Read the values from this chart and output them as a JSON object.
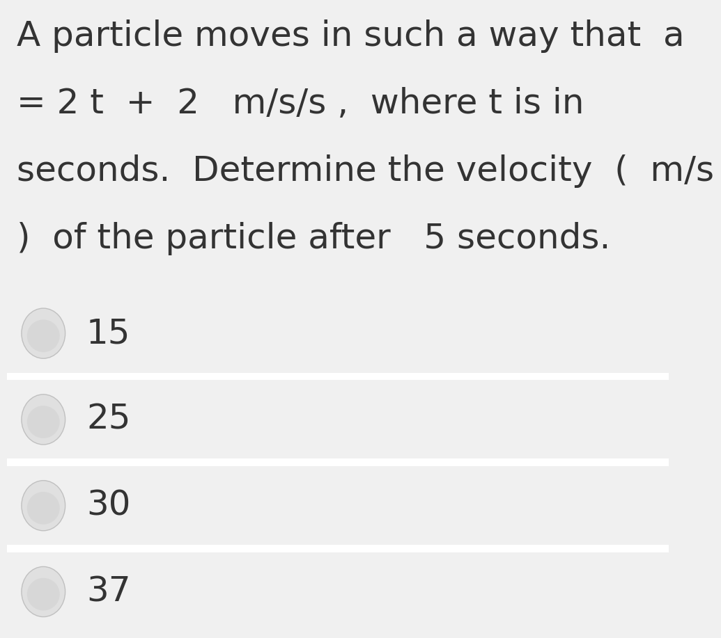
{
  "question_text": "A particle moves in such a way that  a\n= 2 t  +  2   m/s/s ,  where t is in\nseconds.  Determine the velocity  (  m/s\n)  of the particle after   5 seconds.",
  "options": [
    "15",
    "25",
    "30",
    "37"
  ],
  "background_color": "#f0f0f0",
  "option_bg_color": "#f0f0f0",
  "divider_color": "#ffffff",
  "text_color": "#333333",
  "radio_fill_outer": "#e0e0e0",
  "radio_fill_inner": "#d0d0d0",
  "radio_edge": "#c0c0c0",
  "question_fontsize": 36,
  "option_fontsize": 36,
  "fig_width": 9.5,
  "fig_height": 8.97
}
